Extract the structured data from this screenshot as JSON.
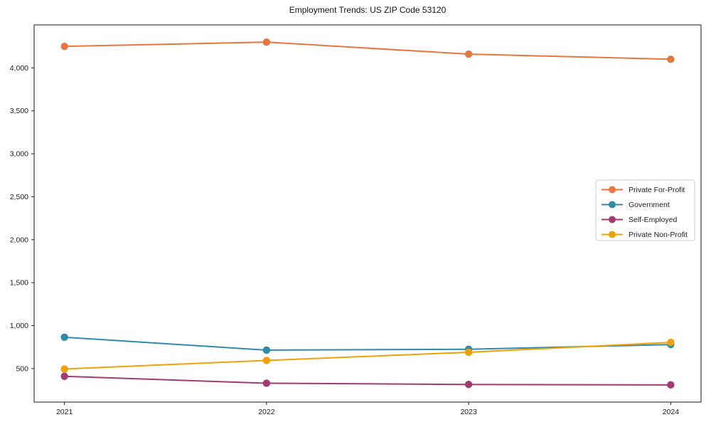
{
  "chart_data": {
    "type": "line",
    "title": "Employment Trends: US ZIP Code 53120",
    "x": [
      2021,
      2022,
      2023,
      2024
    ],
    "x_tick_labels": [
      "2021",
      "2022",
      "2023",
      "2024"
    ],
    "series": [
      {
        "name": "Private For-Profit",
        "color": "#e8763d",
        "values": [
          4250,
          4300,
          4160,
          4100
        ]
      },
      {
        "name": "Government",
        "color": "#2e8bab",
        "values": [
          865,
          715,
          725,
          780
        ]
      },
      {
        "name": "Self-Employed",
        "color": "#a23b72",
        "values": [
          410,
          330,
          315,
          310
        ]
      },
      {
        "name": "Private Non-Profit",
        "color": "#f2a104",
        "values": [
          495,
          595,
          690,
          805
        ]
      }
    ],
    "yticks": [
      500,
      1000,
      1500,
      2000,
      2500,
      3000,
      3500,
      4000
    ],
    "ytick_labels": [
      "500",
      "1,000",
      "1,500",
      "2,000",
      "2,500",
      "3,000",
      "3,500",
      "4,000"
    ],
    "xlim": [
      2020.85,
      2024.15
    ],
    "ylim": [
      110,
      4500
    ],
    "grid": false,
    "legend_position": "center-right",
    "axis_color": "#1a1a1a",
    "legend_border_color": "#cccccc",
    "background": "#ffffff"
  }
}
